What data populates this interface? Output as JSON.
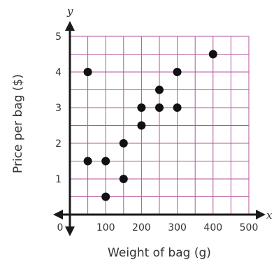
{
  "chart_data": {
    "type": "scatter",
    "xlabel": "Weight of bag (g)",
    "ylabel": "Price per bag ($)",
    "x_axis_var": "x",
    "y_axis_var": "y",
    "origin_label": "0",
    "xlim": [
      0,
      500
    ],
    "ylim": [
      0,
      5
    ],
    "x_ticks": [
      100,
      200,
      300,
      400,
      500
    ],
    "x_tick_labels": [
      "100",
      "200",
      "300",
      "400",
      "500"
    ],
    "y_ticks": [
      1,
      2,
      3,
      4,
      5
    ],
    "y_tick_labels": [
      "1",
      "2",
      "3",
      "4",
      "5"
    ],
    "grid": true,
    "grid_step_x": 50,
    "grid_step_y": 0.5,
    "points": [
      {
        "x": 50,
        "y": 4
      },
      {
        "x": 50,
        "y": 1.5
      },
      {
        "x": 100,
        "y": 1.5
      },
      {
        "x": 100,
        "y": 0.5
      },
      {
        "x": 150,
        "y": 2
      },
      {
        "x": 150,
        "y": 1
      },
      {
        "x": 200,
        "y": 3
      },
      {
        "x": 200,
        "y": 2.5
      },
      {
        "x": 250,
        "y": 3.5
      },
      {
        "x": 250,
        "y": 3
      },
      {
        "x": 300,
        "y": 4
      },
      {
        "x": 300,
        "y": 3
      },
      {
        "x": 400,
        "y": 4.5
      }
    ],
    "colors": {
      "grid": "#b5529a",
      "axis": "#1a1a1a",
      "point": "#111111",
      "text": "#333333"
    }
  }
}
